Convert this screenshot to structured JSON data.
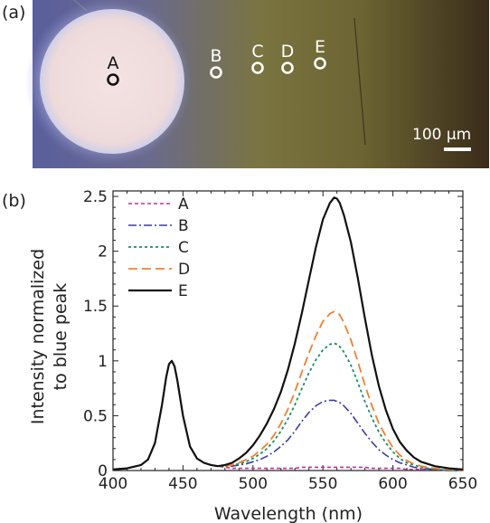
{
  "panel_a": {
    "label": "(a)",
    "scale_bar_label": "100 µm",
    "points": [
      {
        "name": "A",
        "color": "#111111"
      },
      {
        "name": "B",
        "color": "#ffffff"
      },
      {
        "name": "C",
        "color": "#ffffff"
      },
      {
        "name": "D",
        "color": "#ffffff"
      },
      {
        "name": "E",
        "color": "#ffffff"
      }
    ]
  },
  "panel_b": {
    "label": "(b)"
  },
  "chart_data": {
    "type": "line",
    "title": "",
    "xlabel": "Wavelength (nm)",
    "ylabel": "Intensity normalized to blue peak",
    "ylabel_lines": [
      "Intensity normalized",
      "to blue peak"
    ],
    "xlim": [
      400,
      650
    ],
    "ylim": [
      0,
      2.55
    ],
    "xticks": [
      400,
      450,
      500,
      550,
      600,
      650
    ],
    "yticks": [
      0,
      0.5,
      1,
      1.5,
      2,
      2.5
    ],
    "ytick_labels": [
      "0",
      "0.5",
      "1",
      "1.5",
      "2",
      "2.5"
    ],
    "legend_position": "top-left",
    "x": [
      400,
      410,
      420,
      425,
      430,
      435,
      438,
      440,
      442,
      444,
      446,
      450,
      455,
      460,
      465,
      470,
      475,
      480,
      485,
      490,
      495,
      500,
      505,
      510,
      515,
      520,
      525,
      530,
      535,
      540,
      545,
      550,
      555,
      558,
      560,
      562,
      565,
      570,
      575,
      580,
      585,
      590,
      595,
      600,
      605,
      610,
      615,
      620,
      630,
      640,
      650
    ],
    "series": [
      {
        "name": "A",
        "color": "#c0309a",
        "dash": "4,3",
        "width": 1.6,
        "values": [
          0.01,
          0.02,
          0.05,
          0.1,
          0.25,
          0.6,
          0.85,
          0.97,
          1.0,
          0.95,
          0.82,
          0.5,
          0.22,
          0.11,
          0.07,
          0.05,
          0.04,
          0.03,
          0.02,
          0.02,
          0.02,
          0.02,
          0.02,
          0.02,
          0.02,
          0.02,
          0.02,
          0.02,
          0.03,
          0.03,
          0.03,
          0.03,
          0.03,
          0.03,
          0.03,
          0.03,
          0.03,
          0.03,
          0.03,
          0.03,
          0.02,
          0.02,
          0.02,
          0.02,
          0.02,
          0.01,
          0.01,
          0.01,
          0.01,
          0.0,
          0.0
        ]
      },
      {
        "name": "B",
        "color": "#3b3f9c",
        "dash": "9,3,2,3",
        "width": 1.6,
        "values": [
          0.01,
          0.02,
          0.05,
          0.1,
          0.25,
          0.6,
          0.85,
          0.97,
          1.0,
          0.95,
          0.82,
          0.5,
          0.22,
          0.11,
          0.07,
          0.05,
          0.04,
          0.04,
          0.04,
          0.05,
          0.06,
          0.08,
          0.1,
          0.13,
          0.17,
          0.22,
          0.28,
          0.36,
          0.45,
          0.53,
          0.59,
          0.63,
          0.64,
          0.64,
          0.63,
          0.62,
          0.59,
          0.52,
          0.43,
          0.34,
          0.26,
          0.19,
          0.14,
          0.1,
          0.07,
          0.05,
          0.03,
          0.02,
          0.01,
          0.0,
          0.0
        ]
      },
      {
        "name": "C",
        "color": "#1a8f5e",
        "dash": "3,3",
        "width": 1.8,
        "values": [
          0.01,
          0.02,
          0.05,
          0.1,
          0.25,
          0.6,
          0.85,
          0.97,
          1.0,
          0.95,
          0.82,
          0.5,
          0.22,
          0.11,
          0.07,
          0.05,
          0.04,
          0.04,
          0.05,
          0.06,
          0.08,
          0.11,
          0.15,
          0.2,
          0.27,
          0.36,
          0.47,
          0.6,
          0.75,
          0.89,
          1.01,
          1.1,
          1.15,
          1.16,
          1.15,
          1.13,
          1.08,
          0.96,
          0.8,
          0.63,
          0.48,
          0.35,
          0.25,
          0.17,
          0.11,
          0.07,
          0.05,
          0.03,
          0.01,
          0.0,
          0.0
        ]
      },
      {
        "name": "D",
        "color": "#f08030",
        "dash": "10,5",
        "width": 1.8,
        "values": [
          0.01,
          0.02,
          0.05,
          0.1,
          0.25,
          0.6,
          0.85,
          0.97,
          1.0,
          0.95,
          0.82,
          0.5,
          0.22,
          0.11,
          0.07,
          0.05,
          0.04,
          0.04,
          0.05,
          0.07,
          0.1,
          0.13,
          0.18,
          0.24,
          0.32,
          0.43,
          0.56,
          0.72,
          0.9,
          1.07,
          1.23,
          1.36,
          1.43,
          1.45,
          1.44,
          1.42,
          1.35,
          1.19,
          0.99,
          0.78,
          0.59,
          0.43,
          0.31,
          0.21,
          0.14,
          0.09,
          0.06,
          0.04,
          0.02,
          0.01,
          0.0
        ]
      },
      {
        "name": "E",
        "color": "#111111",
        "dash": "",
        "width": 2.2,
        "values": [
          0.01,
          0.02,
          0.05,
          0.1,
          0.25,
          0.6,
          0.85,
          0.97,
          1.0,
          0.95,
          0.82,
          0.5,
          0.22,
          0.11,
          0.07,
          0.05,
          0.04,
          0.05,
          0.07,
          0.11,
          0.16,
          0.23,
          0.32,
          0.43,
          0.56,
          0.72,
          0.92,
          1.16,
          1.44,
          1.74,
          2.04,
          2.29,
          2.44,
          2.49,
          2.48,
          2.44,
          2.33,
          2.08,
          1.75,
          1.39,
          1.05,
          0.77,
          0.55,
          0.38,
          0.26,
          0.18,
          0.12,
          0.08,
          0.04,
          0.02,
          0.01
        ]
      }
    ]
  }
}
